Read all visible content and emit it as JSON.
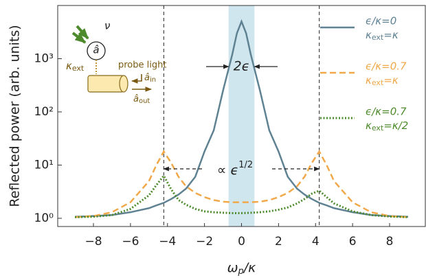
{
  "chart_data": {
    "type": "line",
    "y_label": "Reflected power (arb. units)",
    "x_label": [
      "ω",
      "p",
      "/κ"
    ],
    "log_y": true,
    "xlim": [
      -9.93,
      9.93
    ],
    "ylim": [
      0.7,
      10000
    ],
    "xticks": [
      {
        "value": -8,
        "label": "−8"
      },
      {
        "value": -6,
        "label": "−6"
      },
      {
        "value": -4,
        "label": "−4"
      },
      {
        "value": -2,
        "label": "−2"
      },
      0,
      2,
      4,
      6,
      8
    ],
    "yticks": [
      {
        "value": 1,
        "label": "10⁰"
      },
      {
        "value": 10,
        "label": "10¹"
      },
      {
        "value": 100,
        "label": "10²"
      },
      {
        "value": 1000,
        "label": "10³"
      }
    ],
    "shade": [
      -0.7,
      0.7
    ],
    "vlines": [
      -4.2,
      4.2
    ],
    "annotations": [
      {
        "text": "2ϵ"
      },
      {
        "text": "∝ ϵ",
        "sup": "1/2"
      }
    ],
    "inset": {
      "mode": "â",
      "drive": "ν",
      "coupling": [
        "κ",
        "ext"
      ],
      "probe": "probe light",
      "input": [
        "â",
        "in"
      ],
      "output": [
        "â",
        "out"
      ]
    },
    "x": [
      -9,
      -8,
      -7,
      -6,
      -5,
      -4.6,
      -4.2,
      -3.8,
      -3.4,
      -3,
      -2.5,
      -2,
      -1.5,
      -1,
      -0.5,
      -0.25,
      0,
      0.25,
      0.5,
      1,
      1.5,
      2,
      2.5,
      3,
      3.4,
      3.8,
      4.2,
      4.6,
      5,
      6,
      7,
      8,
      9
    ],
    "series": [
      {
        "name": "ϵ/κ=0",
        "name2": [
          "κ",
          "ext",
          "=κ"
        ],
        "color": "#5f8293",
        "dash": "solid",
        "values": [
          1.07,
          1.1,
          1.15,
          1.3,
          1.55,
          1.75,
          1.95,
          2.3,
          2.8,
          3.6,
          6,
          18,
          45,
          250,
          1200,
          3000,
          5000,
          3000,
          1200,
          250,
          45,
          18,
          6,
          3.6,
          2.8,
          2.3,
          1.95,
          1.75,
          1.55,
          1.3,
          1.15,
          1.1,
          1.07
        ]
      },
      {
        "name": "ϵ/κ=0.7",
        "name2": [
          "κ",
          "ext",
          "=κ"
        ],
        "color": "#f0a848",
        "dash": "dashed",
        "values": [
          1.05,
          1.1,
          1.3,
          2,
          5,
          10,
          18,
          11,
          6,
          4,
          3,
          2.5,
          2.2,
          2.05,
          2,
          2,
          2,
          2,
          2,
          2.05,
          2.2,
          2.5,
          3,
          4,
          6,
          11,
          18,
          10,
          5,
          2,
          1.3,
          1.1,
          1.05
        ]
      },
      {
        "name": "ϵ/κ=0.7",
        "name2": [
          "κ",
          "ext",
          "=κ/2"
        ],
        "color": "#4d8a2c",
        "dash": "dotted",
        "values": [
          1.05,
          1.07,
          1.15,
          1.5,
          2.7,
          4.2,
          6.3,
          3.5,
          2.2,
          1.8,
          1.5,
          1.35,
          1.3,
          1.27,
          1.25,
          1.25,
          1.25,
          1.26,
          1.27,
          1.3,
          1.35,
          1.45,
          1.6,
          1.9,
          2.3,
          2.9,
          3.3,
          2.5,
          1.9,
          1.35,
          1.15,
          1.08,
          1.05
        ]
      }
    ]
  }
}
